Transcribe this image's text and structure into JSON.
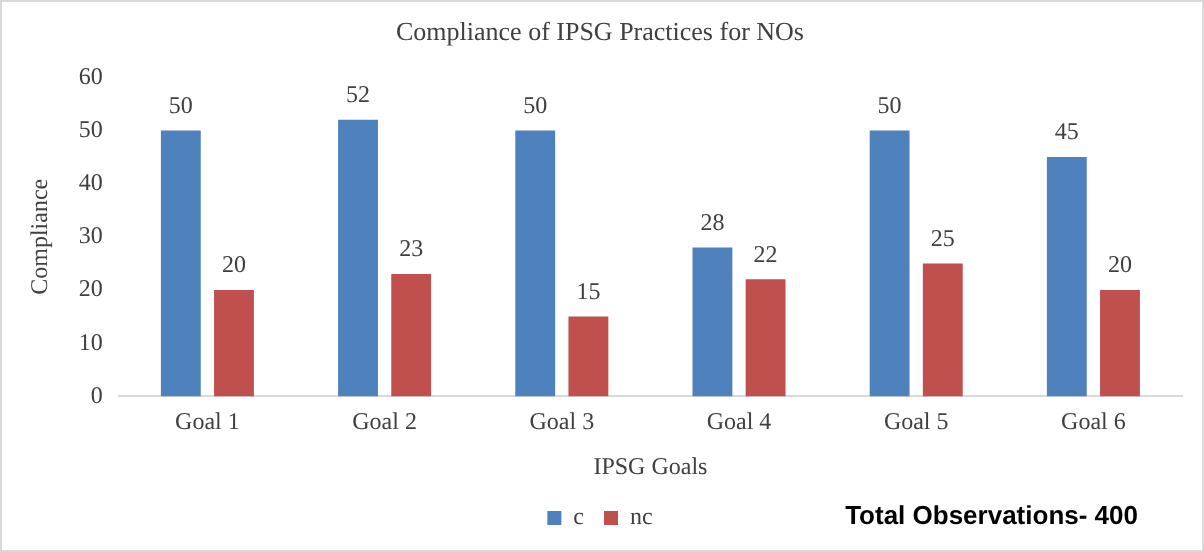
{
  "chart_data": {
    "type": "bar",
    "title": "Compliance of IPSG Practices for NOs",
    "xlabel": "IPSG Goals",
    "ylabel": "Compliance",
    "categories": [
      "Goal 1",
      "Goal 2",
      "Goal 3",
      "Goal 4",
      "Goal 5",
      "Goal 6"
    ],
    "series": [
      {
        "name": "c",
        "color": "#4f81bd",
        "values": [
          50,
          52,
          50,
          28,
          50,
          45
        ]
      },
      {
        "name": "nc",
        "color": "#c0504d",
        "values": [
          20,
          23,
          15,
          22,
          25,
          20
        ]
      }
    ],
    "ylim": [
      0,
      60
    ],
    "yticks": [
      0,
      10,
      20,
      30,
      40,
      50,
      60
    ],
    "grid": false,
    "legend": "bottom",
    "data_labels": true,
    "annotations": [
      "Total Observations- 400"
    ]
  }
}
